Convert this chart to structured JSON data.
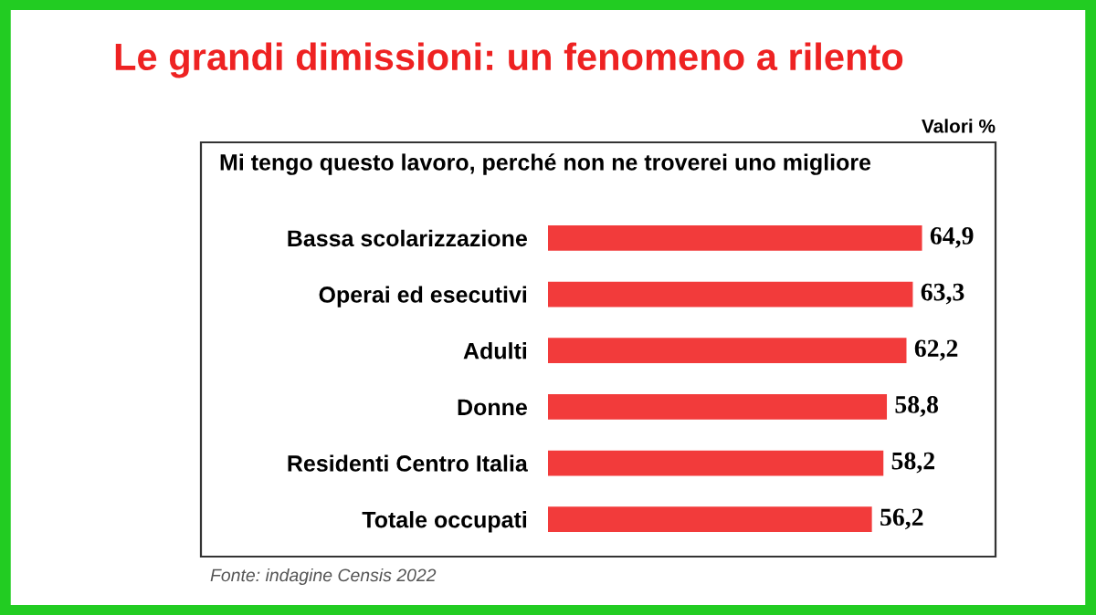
{
  "chart_data": {
    "type": "bar",
    "orientation": "horizontal",
    "title": "Le grandi dimissioni: un fenomeno a rilento",
    "subtitle": "Mi tengo questo lavoro, perché non ne troverei uno migliore",
    "xlabel": "Valori %",
    "categories": [
      "Bassa scolarizzazione",
      "Operai ed esecutivi",
      "Adulti",
      "Donne",
      "Residenti Centro Italia",
      "Totale occupati"
    ],
    "values": [
      64.9,
      63.3,
      62.2,
      58.8,
      58.2,
      56.2
    ],
    "value_labels": [
      "64,9",
      "63,3",
      "62,2",
      "58,8",
      "58,2",
      "56,2"
    ],
    "color": "#f23b3b",
    "grid": false,
    "legend": false,
    "annotations": [
      "Fonte: indagine Censis 2022"
    ]
  }
}
